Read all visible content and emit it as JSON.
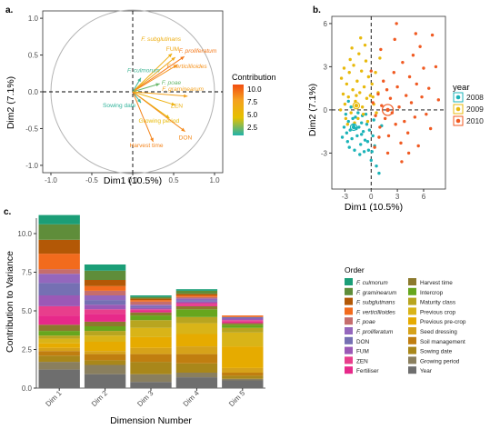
{
  "panel_a": {
    "tag": "a.",
    "xlabel": "Dim1 (10.5%)",
    "ylabel": "Dim2 (7.1%)",
    "xticks": [
      "-1.0",
      "-0.5",
      "0.0",
      "0.5",
      "1.0"
    ],
    "yticks": [
      "1.0",
      "0.5",
      "0.0",
      "-0.5",
      "-1.0"
    ],
    "legend": {
      "title": "Contribution",
      "labels": [
        "10.0",
        "7.5",
        "5.0",
        "2.5"
      ]
    }
  },
  "panel_b": {
    "tag": "b.",
    "xlabel": "Dim1 (10.5%)",
    "ylabel": "Dim2 (7.1%)",
    "xticks": [
      "-3",
      "0",
      "3",
      "6"
    ],
    "yticks": [
      "6",
      "3",
      "0",
      "-3"
    ],
    "legend": {
      "title": "year",
      "items": [
        "2008",
        "2009",
        "2010"
      ]
    }
  },
  "panel_c": {
    "tag": "c.",
    "xlabel": "Dimension Number",
    "ylabel": "Contribution to Variance",
    "yticks": [
      "10.0",
      "7.5",
      "5.0",
      "2.5",
      "0.0"
    ],
    "legend_title": "Order"
  },
  "chart_data": [
    {
      "type": "scatter",
      "panel": "a",
      "title": "",
      "xlabel": "Dim1 (10.5%)",
      "ylabel": "Dim2 (7.1%)",
      "xlim": [
        -1.1,
        1.1
      ],
      "ylim": [
        -1.1,
        1.1
      ],
      "vectors": [
        {
          "label": "F. subglutinans",
          "x": 0.48,
          "y": 0.52,
          "contribution": 6.5,
          "italic_part": "F. subglutinans"
        },
        {
          "label": "FUM",
          "x": 0.52,
          "y": 0.47,
          "contribution": 7.0
        },
        {
          "label": "F. proliferatum",
          "x": 0.63,
          "y": 0.48,
          "contribution": 9.5,
          "italic_part": "F. proliferatum"
        },
        {
          "label": "F. verticillioides",
          "x": 0.55,
          "y": 0.37,
          "contribution": 8.5,
          "italic_part": "F. verticillioides"
        },
        {
          "label": "F. culmorum",
          "x": 0.1,
          "y": 0.19,
          "contribution": 1.5,
          "italic_part": "F. culmorum"
        },
        {
          "label": "F. poae",
          "x": 0.33,
          "y": 0.11,
          "contribution": 2.3,
          "italic_part": "F. poae"
        },
        {
          "label": "F. graminearum",
          "x": 0.67,
          "y": -0.06,
          "contribution": 7.8,
          "italic_part": "F. graminearum"
        },
        {
          "label": "ZEN",
          "x": 0.52,
          "y": -0.18,
          "contribution": 6.2
        },
        {
          "label": "Sowing date",
          "x": 0.1,
          "y": -0.15,
          "contribution": 1.3
        },
        {
          "label": "Growing period",
          "x": 0.45,
          "y": -0.36,
          "contribution": 5.2
        },
        {
          "label": "DON",
          "x": 0.64,
          "y": -0.54,
          "contribution": 8.8
        },
        {
          "label": "Harvest time",
          "x": 0.25,
          "y": -0.68,
          "contribution": 9.0
        }
      ],
      "color_scale": {
        "title": "Contribution",
        "range": [
          1,
          11
        ],
        "ticks": [
          10.0,
          7.5,
          5.0,
          2.5
        ]
      }
    },
    {
      "type": "scatter",
      "panel": "b",
      "title": "",
      "xlabel": "Dim1 (10.5%)",
      "ylabel": "Dim2 (7.1%)",
      "xlim": [
        -4.5,
        8.5
      ],
      "ylim": [
        -5.5,
        6.5
      ],
      "legend": "right",
      "series": [
        {
          "name": "2008",
          "color": "#1bb3b8",
          "centroid": [
            -2.0,
            -1.2
          ],
          "points": [
            [
              -3.1,
              -1.2
            ],
            [
              -2.8,
              -1.6
            ],
            [
              -2.6,
              -0.8
            ],
            [
              -2.4,
              -1.4
            ],
            [
              -2.2,
              -2.0
            ],
            [
              -2.0,
              -1.1
            ],
            [
              -1.8,
              -0.5
            ],
            [
              -1.6,
              -1.8
            ],
            [
              -1.4,
              -1.2
            ],
            [
              -1.2,
              -2.4
            ],
            [
              -1.1,
              -0.9
            ],
            [
              -0.9,
              -1.5
            ],
            [
              -0.7,
              -2.1
            ],
            [
              -0.5,
              -1.0
            ],
            [
              -0.3,
              -2.8
            ],
            [
              0.0,
              -3.5
            ],
            [
              0.2,
              -1.8
            ],
            [
              0.4,
              -2.5
            ],
            [
              0.6,
              -3.9
            ],
            [
              0.9,
              -4.4
            ],
            [
              -2.9,
              -0.3
            ],
            [
              -2.5,
              -2.6
            ],
            [
              -2.3,
              0.2
            ],
            [
              -1.9,
              -2.8
            ],
            [
              -1.5,
              -0.2
            ],
            [
              -1.3,
              -3.1
            ],
            [
              -1.0,
              -0.4
            ],
            [
              -0.8,
              -2.9
            ],
            [
              -0.6,
              -0.3
            ],
            [
              -0.2,
              -1.4
            ],
            [
              0.3,
              -0.7
            ],
            [
              -3.3,
              -1.9
            ],
            [
              -2.7,
              -2.2
            ],
            [
              -2.1,
              -0.6
            ],
            [
              -1.7,
              -1.3
            ],
            [
              -1.1,
              -1.7
            ],
            [
              -0.4,
              -2.2
            ],
            [
              0.1,
              -2.9
            ],
            [
              1.2,
              -1.1
            ],
            [
              -2.6,
              0.6
            ]
          ]
        },
        {
          "name": "2009",
          "color": "#e8b90c",
          "centroid": [
            -1.7,
            0.3
          ],
          "points": [
            [
              -3.4,
              2.2
            ],
            [
              -3.2,
              1.1
            ],
            [
              -3.0,
              0.4
            ],
            [
              -2.8,
              1.8
            ],
            [
              -2.6,
              0.9
            ],
            [
              -2.5,
              2.6
            ],
            [
              -2.3,
              -0.2
            ],
            [
              -2.1,
              1.4
            ],
            [
              -2.0,
              3.1
            ],
            [
              -1.8,
              0.6
            ],
            [
              -1.6,
              2.0
            ],
            [
              -1.5,
              -0.6
            ],
            [
              -1.3,
              1.2
            ],
            [
              -1.1,
              2.7
            ],
            [
              -1.0,
              0.2
            ],
            [
              -0.8,
              1.6
            ],
            [
              -0.6,
              3.4
            ],
            [
              -0.5,
              0.8
            ],
            [
              -0.3,
              2.3
            ],
            [
              -0.1,
              1.0
            ],
            [
              0.1,
              1.8
            ],
            [
              0.3,
              0.4
            ],
            [
              -3.5,
              0.0
            ],
            [
              -2.9,
              -0.6
            ],
            [
              -2.4,
              3.5
            ],
            [
              -1.9,
              -0.9
            ],
            [
              -1.4,
              3.9
            ],
            [
              -0.9,
              -0.3
            ],
            [
              -0.4,
              -0.8
            ],
            [
              0.5,
              2.6
            ],
            [
              0.8,
              1.2
            ],
            [
              -2.2,
              4.3
            ],
            [
              -1.2,
              5.0
            ],
            [
              0.2,
              0.9
            ],
            [
              -3.1,
              2.9
            ],
            [
              -1.7,
              1.0
            ],
            [
              -2.7,
              -1.0
            ],
            [
              0.6,
              -0.2
            ],
            [
              1.0,
              3.6
            ],
            [
              -0.7,
              4.5
            ]
          ]
        },
        {
          "name": "2010",
          "color": "#f05a22",
          "centroid": [
            1.9,
            0.0
          ],
          "points": [
            [
              0.2,
              0.5
            ],
            [
              0.5,
              -0.4
            ],
            [
              0.8,
              1.1
            ],
            [
              1.0,
              -1.2
            ],
            [
              1.2,
              0.3
            ],
            [
              1.4,
              2.0
            ],
            [
              1.6,
              -0.6
            ],
            [
              1.8,
              1.4
            ],
            [
              2.0,
              -1.8
            ],
            [
              2.2,
              0.8
            ],
            [
              2.4,
              -0.2
            ],
            [
              2.6,
              2.6
            ],
            [
              2.8,
              -1.0
            ],
            [
              3.0,
              1.6
            ],
            [
              3.2,
              0.2
            ],
            [
              3.4,
              -2.3
            ],
            [
              3.6,
              3.3
            ],
            [
              3.8,
              -0.8
            ],
            [
              4.0,
              1.0
            ],
            [
              4.2,
              -1.6
            ],
            [
              4.4,
              2.3
            ],
            [
              4.6,
              0.5
            ],
            [
              4.8,
              3.8
            ],
            [
              5.0,
              -0.5
            ],
            [
              5.2,
              1.8
            ],
            [
              5.4,
              -2.5
            ],
            [
              5.6,
              4.4
            ],
            [
              5.8,
              0.9
            ],
            [
              6.0,
              2.9
            ],
            [
              6.3,
              -0.3
            ],
            [
              6.6,
              1.5
            ],
            [
              7.0,
              5.2
            ],
            [
              7.4,
              3.0
            ],
            [
              7.7,
              0.7
            ],
            [
              0.0,
              2.7
            ],
            [
              0.4,
              -2.6
            ],
            [
              1.1,
              4.2
            ],
            [
              1.9,
              -3.0
            ],
            [
              2.7,
              4.9
            ],
            [
              3.5,
              -3.6
            ],
            [
              4.3,
              -3.0
            ],
            [
              5.1,
              5.3
            ],
            [
              2.9,
              6.0
            ],
            [
              6.8,
              -1.3
            ],
            [
              0.9,
              -1.9
            ]
          ]
        }
      ]
    },
    {
      "type": "bar",
      "panel": "c",
      "stacked": true,
      "title": "",
      "xlabel": "Dimension Number",
      "ylabel": "Contribution to Variance",
      "ylim": [
        0,
        11
      ],
      "categories": [
        "Dim 1",
        "Dim 2",
        "Dim 3",
        "Dim 4",
        "Dim 5"
      ],
      "series": [
        {
          "name": "Year",
          "color": "#6e6e6e",
          "values": [
            1.2,
            0.9,
            0.4,
            0.7,
            0.5
          ]
        },
        {
          "name": "Growing period",
          "color": "#8a7f5e",
          "values": [
            0.5,
            0.6,
            0.5,
            0.3,
            0.1
          ]
        },
        {
          "name": "Sowing date",
          "color": "#a9871a",
          "values": [
            0.4,
            0.3,
            0.8,
            0.6,
            0.2
          ]
        },
        {
          "name": "Soil management",
          "color": "#c07e10",
          "values": [
            0.3,
            0.4,
            0.5,
            0.6,
            0.2
          ]
        },
        {
          "name": "Seed dressing",
          "color": "#d6a21a",
          "values": [
            0.2,
            0.2,
            0.4,
            0.5,
            0.3
          ]
        },
        {
          "name": "Previous pre-crop",
          "color": "#e6ab00",
          "values": [
            0.3,
            0.6,
            0.7,
            0.8,
            1.4
          ]
        },
        {
          "name": "Previous crop",
          "color": "#d9b418",
          "values": [
            0.3,
            0.4,
            0.6,
            0.7,
            0.9
          ]
        },
        {
          "name": "Maturity class",
          "color": "#b8a520",
          "values": [
            0.2,
            0.3,
            0.5,
            0.4,
            0.3
          ]
        },
        {
          "name": "Intercrop",
          "color": "#66a61e",
          "values": [
            0.3,
            0.3,
            0.3,
            0.5,
            0.2
          ]
        },
        {
          "name": "Harvest time",
          "color": "#8c7a2e",
          "values": [
            0.4,
            0.3,
            0.2,
            0.2,
            0.1
          ]
        },
        {
          "name": "Fertiliser",
          "color": "#e7298a",
          "values": [
            0.6,
            0.5,
            0.1,
            0.1,
            0.1
          ]
        },
        {
          "name": "ZEN",
          "color": "#e83e8c",
          "values": [
            0.6,
            0.3,
            0.1,
            0.1,
            0.1
          ]
        },
        {
          "name": "FUM",
          "color": "#9b59b6",
          "values": [
            0.7,
            0.3,
            0.1,
            0.1,
            0.1
          ]
        },
        {
          "name": "DON",
          "color": "#7570b3",
          "values": [
            0.8,
            0.3,
            0.1,
            0.1,
            0.1
          ]
        },
        {
          "name": "F. proliferatum",
          "color": "#9467bd",
          "values": [
            0.6,
            0.3,
            0.1,
            0.1,
            0.0
          ]
        },
        {
          "name": "F. poae",
          "color": "#c56d6d",
          "values": [
            0.3,
            0.3,
            0.2,
            0.1,
            0.0
          ]
        },
        {
          "name": "F. verticillioides",
          "color": "#f26b1d",
          "values": [
            1.0,
            0.3,
            0.1,
            0.1,
            0.1
          ]
        },
        {
          "name": "F. subglutinans",
          "color": "#b35806",
          "values": [
            0.9,
            0.4,
            0.1,
            0.1,
            0.0
          ]
        },
        {
          "name": "F. graminearum",
          "color": "#5f8d3a",
          "values": [
            1.0,
            0.6,
            0.1,
            0.2,
            0.0
          ]
        },
        {
          "name": "F. culmorum",
          "color": "#1b9e77",
          "values": [
            0.6,
            0.4,
            0.1,
            0.1,
            0.0
          ]
        }
      ],
      "legend_order": [
        "F. culmorum",
        "F. graminearum",
        "F. subglutinans",
        "F. verticillioides",
        "F. poae",
        "F. proliferatum",
        "DON",
        "FUM",
        "ZEN",
        "Fertiliser",
        "Harvest time",
        "Intercrop",
        "Maturity class",
        "Previous crop",
        "Previous pre-crop",
        "Seed dressing",
        "Soil management",
        "Sowing date",
        "Growing period",
        "Year"
      ]
    }
  ]
}
